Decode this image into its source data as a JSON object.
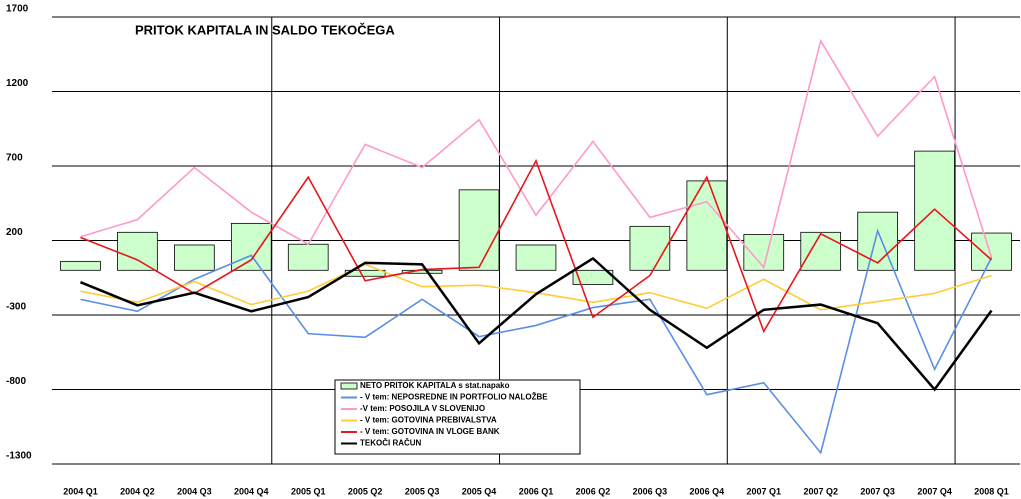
{
  "chart_data": {
    "type": "bar_line",
    "title": "PRITOK KAPITALA IN SALDO TEKOČEGA",
    "categories": [
      "2004 Q1",
      "2004 Q2",
      "2004 Q3",
      "2004 Q4",
      "2005 Q1",
      "2005 Q2",
      "2005 Q3",
      "2005 Q4",
      "2006 Q1",
      "2006 Q2",
      "2006 Q3",
      "2006 Q4",
      "2007 Q1",
      "2007 Q2",
      "2007 Q3",
      "2007 Q4",
      "2008 Q1"
    ],
    "ylim": [
      -1300,
      1700
    ],
    "yticks": [
      -1300,
      -800,
      -300,
      200,
      700,
      1200,
      1700
    ],
    "grid": true,
    "series": [
      {
        "name": "NETO PRITOK KAPITALA s stat.napako",
        "kind": "bar",
        "color": "#ccffcc",
        "values": [
          60,
          255,
          170,
          315,
          175,
          -40,
          -20,
          540,
          170,
          -95,
          295,
          600,
          240,
          255,
          390,
          800,
          250
        ]
      },
      {
        "name": "- V tem: NEPOSREDNE IN PORTFOLIO NALOŽBE",
        "kind": "line",
        "color": "#5b8ee6",
        "values": [
          -195,
          -275,
          -60,
          100,
          -425,
          -450,
          -195,
          -445,
          -370,
          -250,
          -195,
          -835,
          -755,
          -1225,
          265,
          -665,
          85
        ]
      },
      {
        "name": "-V tem: POSOJILA V SLOVENIJO",
        "kind": "line",
        "color": "#ff99cc",
        "values": [
          225,
          340,
          690,
          390,
          175,
          845,
          690,
          1010,
          370,
          865,
          355,
          460,
          20,
          1540,
          900,
          1300,
          85
        ]
      },
      {
        "name": "- V tem: GOTOVINA PREBIVALSTVA",
        "kind": "line",
        "color": "#ffcc33",
        "values": [
          -140,
          -215,
          -75,
          -230,
          -140,
          40,
          -110,
          -100,
          -150,
          -215,
          -150,
          -255,
          -60,
          -265,
          -210,
          -155,
          -35
        ]
      },
      {
        "name": "- V tem: GOTOVINA IN VLOGE BANK",
        "kind": "line",
        "color": "#e8161b",
        "values": [
          220,
          70,
          -155,
          70,
          625,
          -70,
          5,
          20,
          735,
          -315,
          -35,
          625,
          -410,
          245,
          50,
          410,
          70
        ]
      },
      {
        "name": "TEKOČI RAČUN",
        "kind": "line",
        "color": "#000000",
        "values": [
          -80,
          -235,
          -150,
          -275,
          -180,
          50,
          40,
          -490,
          -160,
          80,
          -265,
          -520,
          -265,
          -230,
          -355,
          -800,
          -270
        ]
      }
    ]
  }
}
